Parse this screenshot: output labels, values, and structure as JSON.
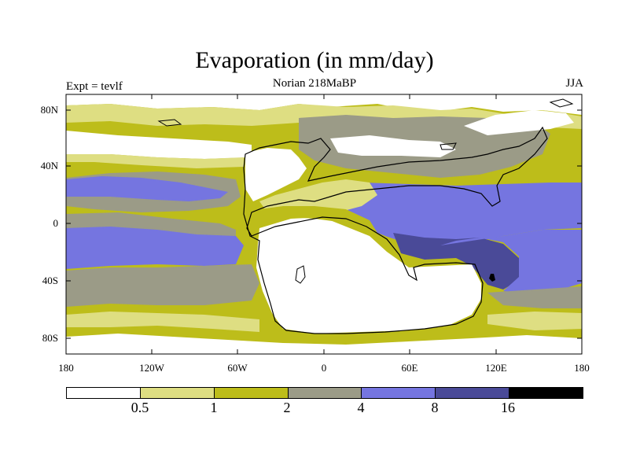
{
  "title": "Evaporation (in mm/day)",
  "subtitle_left": "Expt = tevlf",
  "subtitle_center": "Norian 218MaBP",
  "subtitle_right": "JJA",
  "axes": {
    "y_ticks": [
      "80N",
      "40N",
      "0",
      "40S",
      "80S"
    ],
    "x_ticks": [
      "180",
      "120W",
      "60W",
      "0",
      "60E",
      "120E",
      "180"
    ],
    "xlim": [
      -180,
      180
    ],
    "ylim": [
      -90,
      90
    ]
  },
  "colorbar": {
    "labels": [
      "0.5",
      "1",
      "2",
      "4",
      "8",
      "16"
    ],
    "colors": [
      "#ffffff",
      "#dede82",
      "#bdbd1a",
      "#9b9b87",
      "#7575e0",
      "#4a4a98",
      "#000000"
    ]
  },
  "chart_data": {
    "type": "heatmap",
    "title": "Evaporation (in mm/day)",
    "levels": [
      0.5,
      1,
      2,
      4,
      8,
      16
    ],
    "xlim": [
      -180,
      180
    ],
    "ylim": [
      -90,
      90
    ],
    "grid": false
  }
}
